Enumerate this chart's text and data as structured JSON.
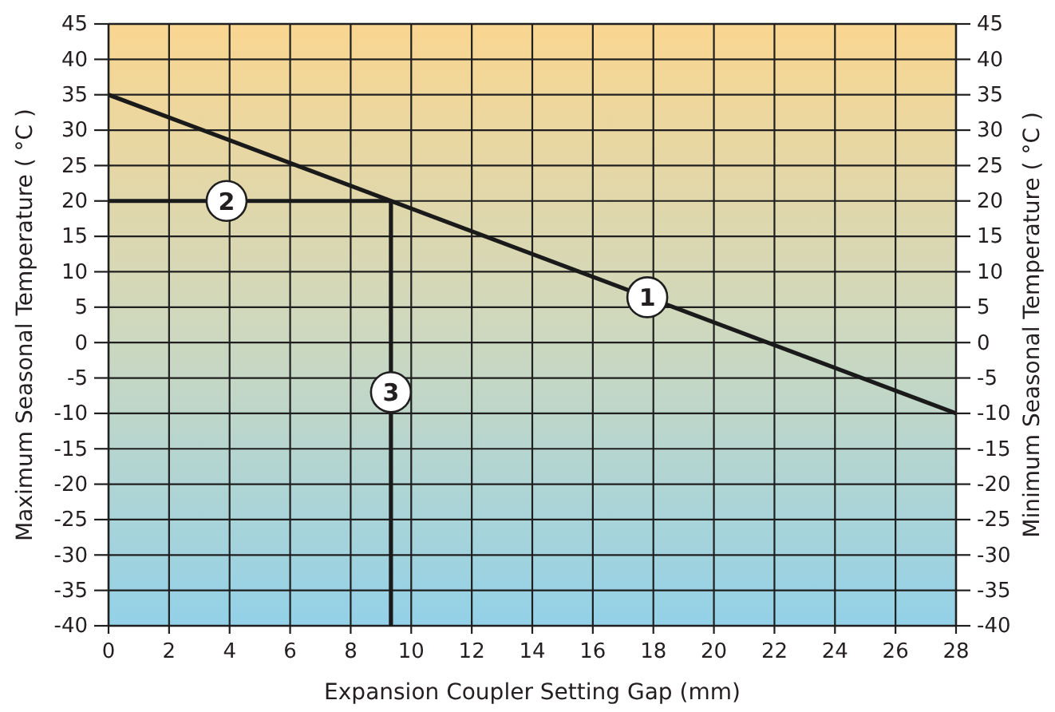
{
  "chart_data": {
    "type": "line",
    "xlabel": "Expansion Coupler Setting Gap (mm)",
    "ylabel": "Maximum Seasonal Temperature ( °C )",
    "y2label": "Minimum Seasonal Temperature ( °C )",
    "series": [
      {
        "x": [
          0,
          28
        ],
        "values": [
          35,
          -10
        ],
        "color": "#1a1a1a"
      },
      {
        "x": [
          0,
          9.33
        ],
        "values": [
          20,
          20
        ],
        "color": "#1a1a1a"
      },
      {
        "x": [
          9.33,
          9.33
        ],
        "values": [
          20,
          -40
        ],
        "color": "#1a1a1a"
      }
    ],
    "xlim": [
      0,
      28
    ],
    "xticks": [
      0,
      2,
      4,
      6,
      8,
      10,
      12,
      14,
      16,
      18,
      20,
      22,
      24,
      26,
      28
    ],
    "ylim": [
      -40,
      45
    ],
    "yticks": [
      -40,
      -35,
      -30,
      -25,
      -20,
      -15,
      -10,
      -5,
      0,
      5,
      10,
      15,
      20,
      25,
      30,
      35,
      40,
      45
    ],
    "y2lim": [
      -40,
      45
    ],
    "y2ticks": [
      -40,
      -35,
      -30,
      -25,
      -20,
      -15,
      -10,
      -5,
      0,
      5,
      10,
      15,
      20,
      25,
      30,
      35,
      40,
      45
    ],
    "grid": true,
    "annotations": [
      {
        "text": "1",
        "x": 17.8,
        "y": 6.4
      },
      {
        "text": "2",
        "x": 3.9,
        "y": 20
      },
      {
        "text": "3",
        "x": 9.33,
        "y": -7
      }
    ]
  }
}
